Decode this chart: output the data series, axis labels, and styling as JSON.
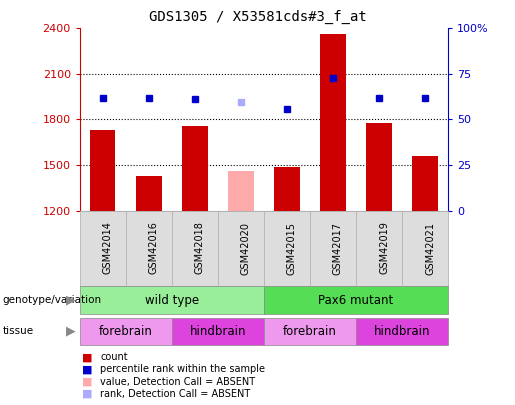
{
  "title": "GDS1305 / X53581cds#3_f_at",
  "samples": [
    "GSM42014",
    "GSM42016",
    "GSM42018",
    "GSM42020",
    "GSM42015",
    "GSM42017",
    "GSM42019",
    "GSM42021"
  ],
  "bar_values": [
    1730,
    1430,
    1760,
    1460,
    1490,
    2360,
    1780,
    1560
  ],
  "bar_colors": [
    "#cc0000",
    "#cc0000",
    "#cc0000",
    "#ffaaaa",
    "#cc0000",
    "#cc0000",
    "#cc0000",
    "#cc0000"
  ],
  "dot_values": [
    1940,
    1940,
    1935,
    1915,
    1870,
    2070,
    1940,
    1940
  ],
  "dot_colors": [
    "#0000cc",
    "#0000cc",
    "#0000cc",
    "#aaaaff",
    "#0000cc",
    "#0000cc",
    "#0000cc",
    "#0000cc"
  ],
  "ylim_left": [
    1200,
    2400
  ],
  "ylim_right": [
    0,
    100
  ],
  "yticks_left": [
    1200,
    1500,
    1800,
    2100,
    2400
  ],
  "yticks_right": [
    0,
    25,
    50,
    75,
    100
  ],
  "ytick_labels_right": [
    "0",
    "25",
    "50",
    "75",
    "100%"
  ],
  "genotype_groups": [
    {
      "label": "wild type",
      "start": 0,
      "end": 4,
      "color": "#99ee99"
    },
    {
      "label": "Pax6 mutant",
      "start": 4,
      "end": 8,
      "color": "#55dd55"
    }
  ],
  "tissue_groups": [
    {
      "label": "forebrain",
      "start": 0,
      "end": 2,
      "color": "#ee99ee"
    },
    {
      "label": "hindbrain",
      "start": 2,
      "end": 4,
      "color": "#dd44dd"
    },
    {
      "label": "forebrain",
      "start": 4,
      "end": 6,
      "color": "#ee99ee"
    },
    {
      "label": "hindbrain",
      "start": 6,
      "end": 8,
      "color": "#dd44dd"
    }
  ],
  "legend_items": [
    {
      "label": "count",
      "color": "#cc0000"
    },
    {
      "label": "percentile rank within the sample",
      "color": "#0000cc"
    },
    {
      "label": "value, Detection Call = ABSENT",
      "color": "#ffaaaa"
    },
    {
      "label": "rank, Detection Call = ABSENT",
      "color": "#aaaaff"
    }
  ],
  "left_axis_color": "#cc0000",
  "right_axis_color": "#0000cc",
  "background_color": "#ffffff"
}
